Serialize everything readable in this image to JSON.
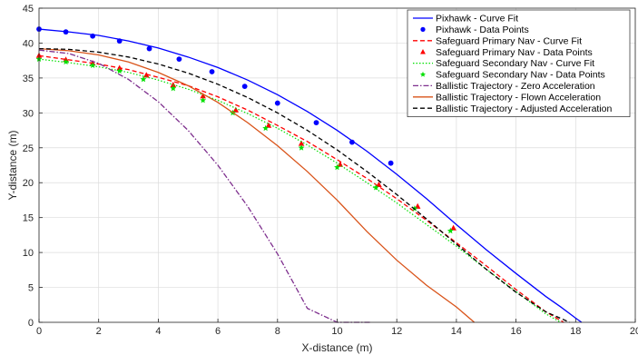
{
  "chart_data": {
    "type": "line",
    "xlabel": "X-distance (m)",
    "ylabel": "Y-distance (m)",
    "xlim": [
      0,
      20
    ],
    "ylim": [
      0,
      45
    ],
    "xticks": [
      0,
      2,
      4,
      6,
      8,
      10,
      12,
      14,
      16,
      18,
      20
    ],
    "yticks": [
      0,
      5,
      10,
      15,
      20,
      25,
      30,
      35,
      40,
      45
    ],
    "grid": true,
    "legend_position": "top-right",
    "series": [
      {
        "name": "Pixhawk - Curve Fit",
        "kind": "line",
        "style": "solid",
        "color": "#0000ff",
        "x": [
          0,
          1,
          2,
          3,
          4,
          5,
          6,
          7,
          8,
          9,
          10,
          11,
          12,
          13,
          14,
          15,
          16,
          17,
          17.5,
          18,
          18.2
        ],
        "y": [
          42.0,
          41.6,
          41.1,
          40.3,
          39.3,
          38.0,
          36.5,
          34.7,
          32.6,
          30.2,
          27.5,
          24.5,
          21.2,
          17.7,
          14.0,
          10.4,
          7.0,
          3.7,
          2.2,
          0.6,
          0
        ]
      },
      {
        "name": "Pixhawk - Data Points",
        "kind": "markers",
        "marker": "circle",
        "color": "#0000ff",
        "x": [
          0,
          0.9,
          1.8,
          2.7,
          3.7,
          4.7,
          5.8,
          6.9,
          8.0,
          9.3,
          10.5,
          11.8
        ],
        "y": [
          42.0,
          41.6,
          41.0,
          40.3,
          39.2,
          37.7,
          35.9,
          33.8,
          31.4,
          28.6,
          25.8,
          22.8
        ]
      },
      {
        "name": "Safeguard Primary Nav - Curve Fit",
        "kind": "line",
        "style": "dashed",
        "color": "#ff0000",
        "x": [
          0,
          1,
          2,
          3,
          4,
          5,
          6,
          7,
          8,
          9,
          10,
          11,
          12,
          13,
          14,
          15,
          16,
          17,
          17.6
        ],
        "y": [
          38.2,
          37.6,
          37.0,
          36.2,
          35.1,
          33.9,
          32.3,
          30.4,
          28.2,
          25.9,
          23.3,
          20.6,
          17.7,
          14.6,
          11.4,
          8.1,
          4.7,
          1.5,
          0
        ]
      },
      {
        "name": "Safeguard Primary Nav - Data Points",
        "kind": "markers",
        "marker": "triangle",
        "color": "#ff0000",
        "x": [
          0,
          0.9,
          1.8,
          2.7,
          3.6,
          4.5,
          5.5,
          6.6,
          7.7,
          8.8,
          10.1,
          11.4,
          12.7,
          13.9
        ],
        "y": [
          38.2,
          37.6,
          37.1,
          36.4,
          35.4,
          34.0,
          32.4,
          30.4,
          28.2,
          25.6,
          22.6,
          19.7,
          16.6,
          13.5
        ]
      },
      {
        "name": "Safeguard Secondary Nav - Curve Fit",
        "kind": "line",
        "style": "dotted",
        "color": "#00e000",
        "x": [
          0,
          1,
          2,
          3,
          4,
          5,
          6,
          7,
          8,
          9,
          10,
          11,
          12,
          13,
          14,
          15,
          16,
          17,
          17.5
        ],
        "y": [
          37.7,
          37.2,
          36.6,
          35.8,
          34.7,
          33.4,
          31.8,
          29.9,
          27.8,
          25.4,
          22.8,
          20.0,
          17.1,
          14.0,
          10.9,
          7.6,
          4.4,
          1.2,
          0
        ]
      },
      {
        "name": "Safeguard Secondary Nav - Data Points",
        "kind": "markers",
        "marker": "star",
        "color": "#00e000",
        "x": [
          0,
          0.9,
          1.8,
          2.7,
          3.5,
          4.5,
          5.5,
          6.5,
          7.6,
          8.8,
          10.0,
          11.3,
          12.6,
          13.8
        ],
        "y": [
          37.7,
          37.3,
          36.8,
          36.0,
          34.8,
          33.5,
          31.8,
          30.0,
          27.8,
          25.0,
          22.2,
          19.3,
          16.3,
          13.1
        ]
      },
      {
        "name": "Ballistic Trajectory - Zero Acceleration",
        "kind": "line",
        "style": "dashdot",
        "color": "#7e2f8e",
        "x": [
          0,
          1,
          2,
          3,
          4,
          5,
          6,
          7,
          8,
          9,
          10,
          11,
          11.1
        ],
        "y": [
          39.0,
          38.5,
          37.1,
          34.8,
          31.6,
          27.5,
          22.5,
          16.6,
          9.8,
          2.0,
          0,
          0,
          0
        ]
      },
      {
        "name": "Ballistic Trajectory - Flown Acceleration",
        "kind": "line",
        "style": "solid",
        "color": "#d95319",
        "x": [
          0,
          1,
          2,
          3,
          4,
          5,
          6,
          7,
          8,
          9,
          10,
          11,
          12,
          13,
          14,
          14.6
        ],
        "y": [
          39.2,
          38.9,
          38.3,
          37.3,
          35.8,
          33.9,
          31.5,
          28.6,
          25.3,
          21.6,
          17.5,
          13.0,
          8.9,
          5.3,
          2.2,
          0
        ]
      },
      {
        "name": "Ballistic Trajectory - Adjusted Acceleration",
        "kind": "line",
        "style": "dashed",
        "color": "#000000",
        "x": [
          0,
          1,
          2,
          3,
          4,
          5,
          6,
          7,
          8,
          9,
          10,
          11,
          12,
          13,
          14,
          15,
          16,
          17,
          17.8
        ],
        "y": [
          39.2,
          39.1,
          38.7,
          38.0,
          37.0,
          35.7,
          34.1,
          32.2,
          30.0,
          27.5,
          24.7,
          21.6,
          18.3,
          14.8,
          11.2,
          7.6,
          4.3,
          1.5,
          0
        ]
      }
    ]
  }
}
